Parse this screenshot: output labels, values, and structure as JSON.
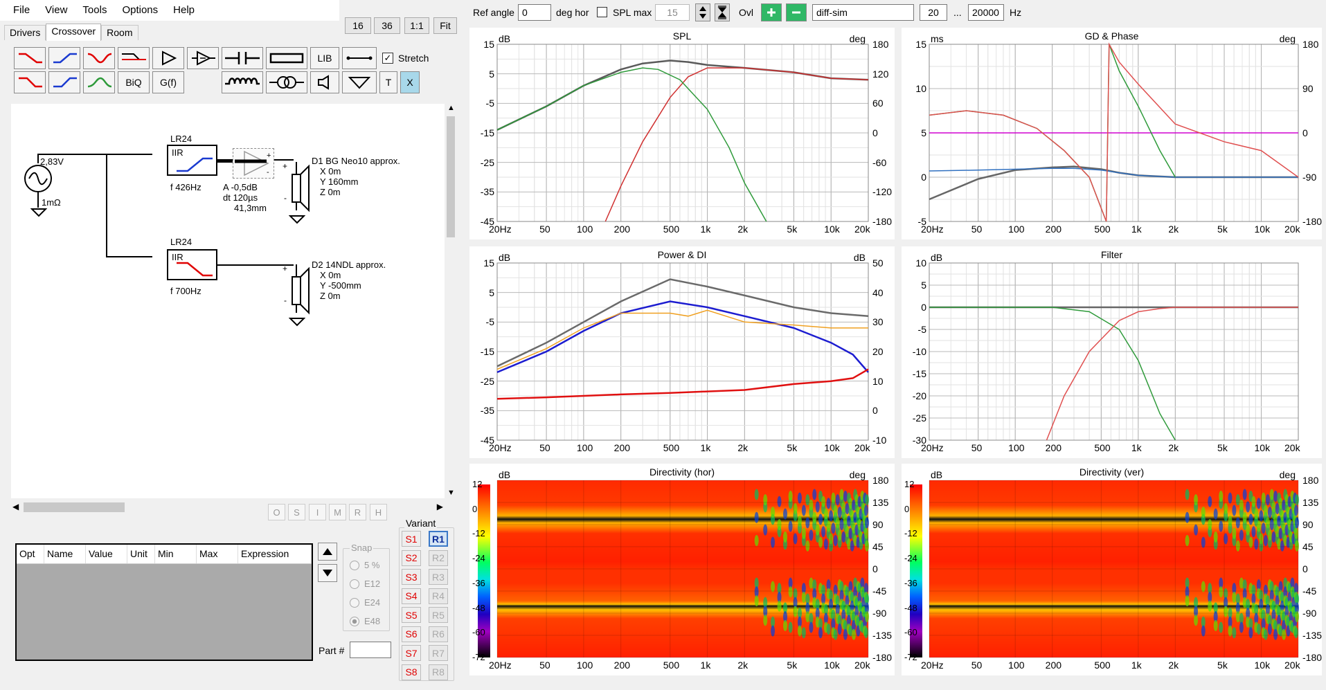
{
  "menu": [
    "File",
    "View",
    "Tools",
    "Options",
    "Help"
  ],
  "tabs": [
    "Drivers",
    "Crossover",
    "Room"
  ],
  "zoom_buttons": [
    "16",
    "36",
    "1:1",
    "Fit"
  ],
  "toolbar": {
    "lib": "LIB",
    "stretch": "Stretch",
    "biq": "BiQ",
    "gf": "G(f)",
    "t": "T",
    "x": "X"
  },
  "circuit": {
    "source_voltage": "2,83V",
    "source_impedance": "1mΩ",
    "f1_name": "LR24",
    "f1_type": "IIR",
    "f1_freq": "f   426Hz",
    "amp_a": "A  -0,5dB",
    "amp_dt": "dt 120µs",
    "amp_dist": "41,3mm",
    "d1_name": "D1 BG Neo10 approx.",
    "d1_x": "X 0m",
    "d1_y": "Y 160mm",
    "d1_z": "Z 0m",
    "f2_name": "LR24",
    "f2_type": "IIR",
    "f2_freq": "f   700Hz",
    "d2_name": "D2 14NDL approx.",
    "d2_x": "X 0m",
    "d2_y": "Y -500mm",
    "d2_z": "Z 0m"
  },
  "opt_buttons": [
    "O",
    "S",
    "I",
    "M",
    "R",
    "H"
  ],
  "table_headers": [
    "Opt",
    "Name",
    "Value",
    "Unit",
    "Min",
    "Max",
    "Expression"
  ],
  "snap": {
    "title": "Snap",
    "options": [
      "5 %",
      "E12",
      "E24",
      "E48"
    ]
  },
  "part_label": "Part #",
  "variant": {
    "title": "Variant",
    "s": [
      "S1",
      "S2",
      "S3",
      "S4",
      "S5",
      "S6",
      "S7",
      "S8"
    ],
    "r": [
      "R1",
      "R2",
      "R3",
      "R4",
      "R5",
      "R6",
      "R7",
      "R8"
    ]
  },
  "topbar": {
    "ref_angle_label": "Ref angle",
    "ref_angle": "0",
    "deg_hor": "deg hor",
    "spl_max_label": "SPL max",
    "spl_max": "15",
    "ovl": "Ovl",
    "name": "diff-sim",
    "f_low": "20",
    "ellipsis": "...",
    "f_high": "20000",
    "hz": "Hz"
  },
  "x_ticks": [
    "20Hz",
    "50",
    "100",
    "200",
    "500",
    "1k",
    "2k",
    "5k",
    "10k",
    "20k"
  ],
  "panels": {
    "spl": {
      "title": "SPL",
      "left_unit": "dB",
      "right_unit": "deg",
      "left": [
        "15",
        "5",
        "-5",
        "-15",
        "-25",
        "-35",
        "-45"
      ],
      "right": [
        "180",
        "120",
        "60",
        "0",
        "-60",
        "-120",
        "-180"
      ]
    },
    "gd": {
      "title": "GD & Phase",
      "left_unit": "ms",
      "right_unit": "deg",
      "left": [
        "15",
        "10",
        "5",
        "0",
        "-5"
      ],
      "right": [
        "180",
        "90",
        "0",
        "-90",
        "-180"
      ]
    },
    "power": {
      "title": "Power & DI",
      "left_unit": "dB",
      "right_unit": "dB",
      "left": [
        "15",
        "5",
        "-5",
        "-15",
        "-25",
        "-35",
        "-45"
      ],
      "right": [
        "50",
        "40",
        "30",
        "20",
        "10",
        "0",
        "-10"
      ]
    },
    "filter": {
      "title": "Filter",
      "left_unit": "dB",
      "left": [
        "10",
        "5",
        "0",
        "-5",
        "-10",
        "-15",
        "-20",
        "-25",
        "-30"
      ]
    },
    "dirh": {
      "title": "Directivity (hor)",
      "left_unit": "dB",
      "right_unit": "deg",
      "scale": [
        "12",
        "0",
        "-12",
        "-24",
        "-36",
        "-48",
        "-60",
        "-72"
      ],
      "right": [
        "180",
        "135",
        "90",
        "45",
        "0",
        "-45",
        "-90",
        "-135",
        "-180"
      ]
    },
    "dirv": {
      "title": "Directivity (ver)",
      "left_unit": "dB",
      "right_unit": "deg",
      "scale": [
        "12",
        "0",
        "-12",
        "-24",
        "-36",
        "-48",
        "-60",
        "-72"
      ],
      "right": [
        "180",
        "135",
        "90",
        "45",
        "0",
        "-45",
        "-90",
        "-135",
        "-180"
      ]
    }
  },
  "chart_data": [
    {
      "type": "line",
      "title": "SPL",
      "x_scale": "log",
      "xlim": [
        20,
        20000
      ],
      "ylim": [
        -45,
        15
      ],
      "ylabel": "dB",
      "y2label": "deg",
      "y2lim": [
        -180,
        180
      ],
      "series": [
        {
          "color": "#5a5a5a",
          "x": [
            20,
            50,
            100,
            200,
            300,
            500,
            700,
            1000,
            2000,
            5000,
            10000,
            20000
          ],
          "y": [
            -14,
            -6,
            1,
            6.5,
            8.5,
            9.5,
            9,
            8,
            7,
            5.5,
            3.5,
            3
          ]
        },
        {
          "color": "#d03030",
          "x": [
            150,
            200,
            300,
            500,
            700,
            1000,
            2000,
            5000,
            10000,
            20000
          ],
          "y": [
            -45,
            -33,
            -18,
            -3,
            4,
            7,
            7,
            5.5,
            3.5,
            3
          ]
        },
        {
          "color": "#2e9a3a",
          "x": [
            20,
            50,
            100,
            200,
            300,
            400,
            600,
            1000,
            1500,
            2000,
            3000
          ],
          "y": [
            -14,
            -6,
            1,
            5.5,
            7,
            6.5,
            3,
            -7,
            -20,
            -32,
            -45
          ]
        }
      ]
    },
    {
      "type": "line",
      "title": "GD & Phase",
      "x_scale": "log",
      "xlim": [
        20,
        20000
      ],
      "ylim": [
        -5,
        15
      ],
      "ylabel": "ms",
      "y2label": "deg",
      "y2lim": [
        -180,
        180
      ],
      "series": [
        {
          "color": "#d000d0",
          "x": [
            20,
            20000
          ],
          "y": [
            5,
            5
          ]
        },
        {
          "color": "#666666",
          "x": [
            20,
            50,
            100,
            200,
            300,
            500,
            700,
            1000,
            2000,
            5000,
            20000
          ],
          "y": [
            -2.5,
            -0.2,
            0.8,
            1.1,
            1.2,
            0.9,
            0.5,
            0.2,
            0,
            0,
            0
          ]
        },
        {
          "color": "#3070c0",
          "x": [
            20,
            50,
            100,
            200,
            300,
            500,
            700,
            1000,
            2000,
            20000
          ],
          "y": [
            0.7,
            0.8,
            0.9,
            1,
            1,
            0.8,
            0.5,
            0.2,
            0,
            0
          ]
        },
        {
          "color": "#2e9a3a",
          "x": [
            20,
            40,
            80,
            150,
            250,
            400,
            550,
            580,
            700,
            1000,
            1500,
            2000
          ],
          "y": [
            7,
            7.5,
            7,
            5.5,
            3,
            0,
            -5,
            15,
            12,
            8,
            3,
            0
          ]
        },
        {
          "color": "#e05050",
          "x": [
            20,
            40,
            80,
            150,
            250,
            400,
            550,
            580,
            700,
            1000,
            2000,
            5000,
            10000,
            20000
          ],
          "y": [
            7,
            7.5,
            7,
            5.5,
            3,
            0,
            -5,
            15,
            13,
            10.5,
            6,
            4,
            3,
            0
          ]
        }
      ]
    },
    {
      "type": "line",
      "title": "Power & DI",
      "x_scale": "log",
      "xlim": [
        20,
        20000
      ],
      "ylim": [
        -45,
        15
      ],
      "ylabel": "dB",
      "y2label": "dB",
      "y2lim": [
        -10,
        50
      ],
      "series": [
        {
          "color": "#6a6a6a",
          "x": [
            20,
            50,
            100,
            200,
            500,
            1000,
            2000,
            5000,
            10000,
            20000
          ],
          "y": [
            -20,
            -12,
            -5,
            2,
            9.5,
            7,
            4,
            0,
            -2,
            -3
          ]
        },
        {
          "color": "#1c1cd0",
          "x": [
            20,
            50,
            100,
            200,
            500,
            1000,
            2000,
            5000,
            10000,
            15000,
            20000
          ],
          "y": [
            -22,
            -15,
            -8,
            -2,
            2,
            0,
            -3,
            -7,
            -12,
            -16,
            -22
          ]
        },
        {
          "color": "#f0a020",
          "x": [
            20,
            50,
            100,
            200,
            300,
            500,
            700,
            1000,
            2000,
            5000,
            10000,
            20000
          ],
          "y": [
            -21,
            -14,
            -7,
            -2,
            -2,
            -2,
            -3,
            -1,
            -5,
            -6,
            -7,
            -7
          ]
        },
        {
          "color": "#e01010",
          "x": [
            20,
            50,
            100,
            200,
            500,
            1000,
            2000,
            5000,
            10000,
            15000,
            20000
          ],
          "y": [
            -31,
            -30.5,
            -30,
            -29.5,
            -29,
            -28.5,
            -28,
            -26,
            -25,
            -24,
            -21
          ]
        }
      ]
    },
    {
      "type": "line",
      "title": "Filter",
      "x_scale": "log",
      "xlim": [
        20,
        20000
      ],
      "ylim": [
        -30,
        10
      ],
      "ylabel": "dB",
      "series": [
        {
          "color": "#d000d0",
          "x": [
            20,
            20000
          ],
          "y": [
            0,
            0
          ]
        },
        {
          "color": "#666666",
          "x": [
            20,
            300,
            500,
            1000,
            20000
          ],
          "y": [
            0,
            0,
            0,
            0,
            0
          ]
        },
        {
          "color": "#2e9a3a",
          "x": [
            20,
            200,
            400,
            700,
            1000,
            1500,
            2000
          ],
          "y": [
            0,
            0,
            -1,
            -5,
            -12,
            -24,
            -30
          ]
        },
        {
          "color": "#e05050",
          "x": [
            180,
            250,
            400,
            700,
            1000,
            1500,
            2000,
            20000
          ],
          "y": [
            -30,
            -20,
            -10,
            -3,
            -1,
            -0.3,
            0,
            0
          ]
        }
      ]
    },
    {
      "type": "heatmap",
      "title": "Directivity (hor)",
      "x_scale": "log",
      "xlim": [
        20,
        20000
      ],
      "ylim": [
        -180,
        180
      ],
      "ylabel": "deg",
      "zlim": [
        -72,
        12
      ]
    },
    {
      "type": "heatmap",
      "title": "Directivity (ver)",
      "x_scale": "log",
      "xlim": [
        20,
        20000
      ],
      "ylim": [
        -180,
        180
      ],
      "ylabel": "deg",
      "zlim": [
        -72,
        12
      ]
    }
  ]
}
